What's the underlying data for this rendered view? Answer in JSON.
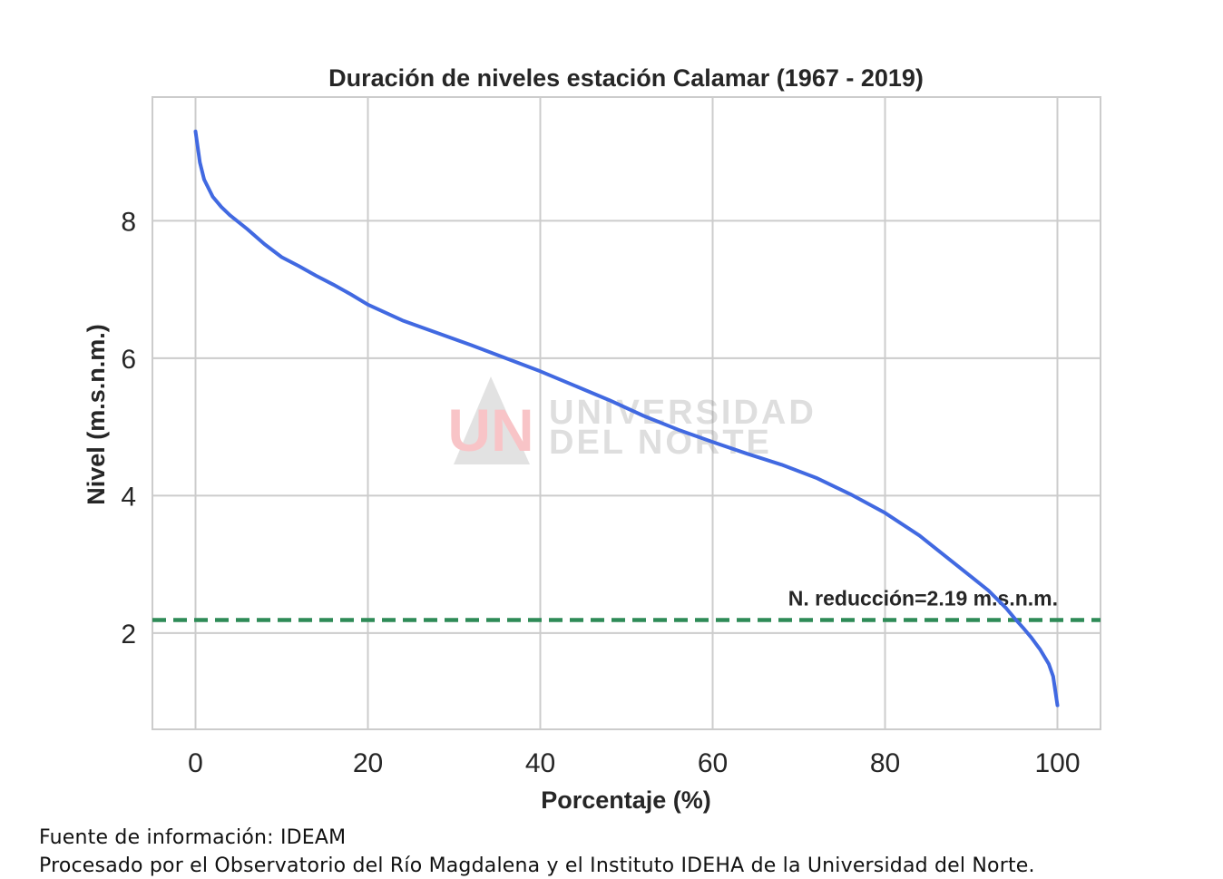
{
  "chart_data": {
    "type": "line",
    "title": "Duración de niveles estación Calamar (1967 - 2019)",
    "xlabel": "Porcentaje (%)",
    "ylabel": "Nivel (m.s.n.m.)",
    "xlim": [
      -5,
      105
    ],
    "ylim": [
      0.6,
      9.8
    ],
    "xticks": [
      0,
      20,
      40,
      60,
      80,
      100
    ],
    "xtick_labels": [
      "0",
      "20",
      "40",
      "60",
      "80",
      "100"
    ],
    "yticks": [
      2,
      4,
      6,
      8
    ],
    "ytick_labels": [
      "2",
      "4",
      "6",
      "8"
    ],
    "grid": true,
    "legend": "none",
    "series": [
      {
        "color": "#4169e1",
        "x": [
          0,
          0.5,
          1,
          2,
          3,
          4,
          6,
          8,
          10,
          12,
          14,
          16,
          18,
          20,
          24,
          28,
          32,
          36,
          40,
          44,
          48,
          52,
          56,
          60,
          64,
          68,
          72,
          76,
          80,
          84,
          88,
          90,
          92,
          94,
          95,
          96,
          97,
          98,
          99,
          99.5,
          100
        ],
        "y": [
          9.3,
          8.85,
          8.6,
          8.35,
          8.2,
          8.08,
          7.88,
          7.66,
          7.47,
          7.34,
          7.2,
          7.07,
          6.93,
          6.78,
          6.55,
          6.37,
          6.19,
          6.0,
          5.81,
          5.6,
          5.39,
          5.16,
          4.96,
          4.78,
          4.61,
          4.45,
          4.26,
          4.02,
          3.75,
          3.42,
          3.02,
          2.82,
          2.62,
          2.37,
          2.22,
          2.08,
          1.93,
          1.76,
          1.55,
          1.37,
          0.95
        ]
      }
    ],
    "reference_line": {
      "y": 2.19,
      "color": "#2e8b57",
      "label": "N. reducción=2.19 m.s.n.m."
    }
  },
  "watermark": {
    "logo_text": "UN",
    "line1": "UNIVERSIDAD",
    "line2": "DEL NORTE"
  },
  "footer": {
    "source": "Fuente de información: IDEAM",
    "processed_by": "Procesado por el Observatorio del Río Magdalena y el Instituto IDEHA de la Universidad del Norte."
  }
}
